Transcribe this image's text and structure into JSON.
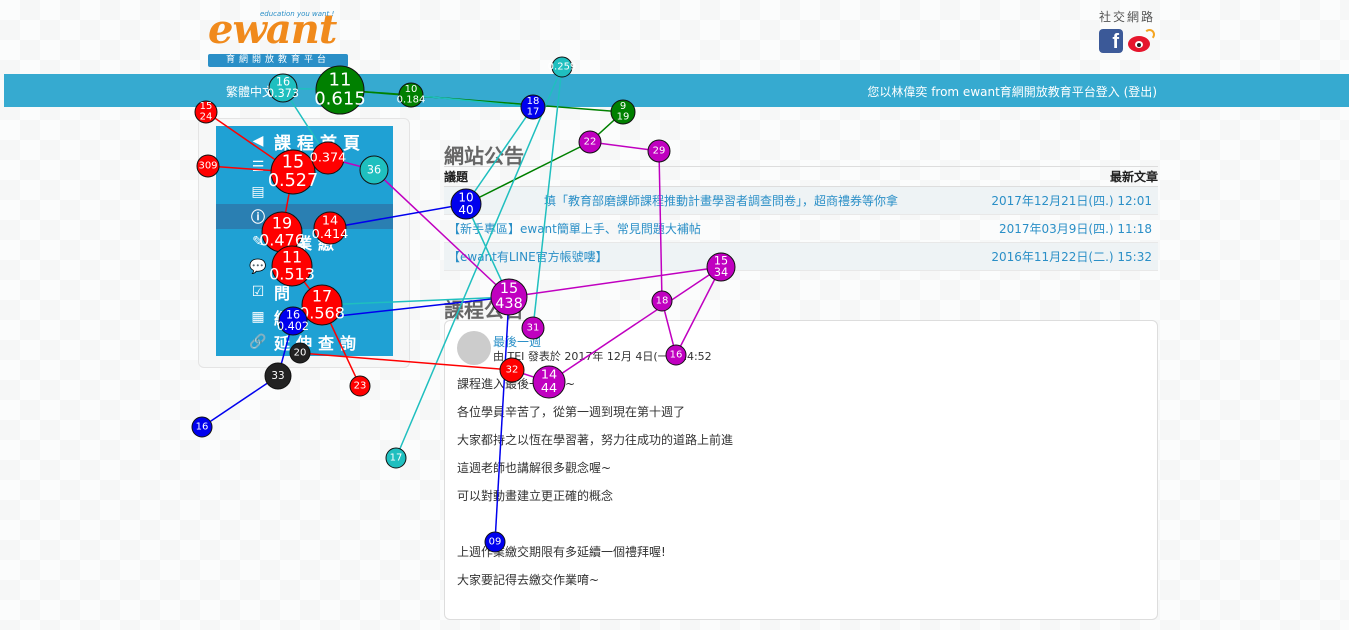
{
  "header": {
    "logo_text_main": "ewant",
    "logo_tagline": "education you want !",
    "logo_subtitle": "育網開放教育平台",
    "social_title": "社交網路",
    "social_icons": [
      "facebook-icon",
      "weibo-icon"
    ]
  },
  "navbar": {
    "language": "繁體中文",
    "login_text": "您以林偉奕 from ewant育網開放教育平台登入 (",
    "logout": "登出",
    "login_close": ")"
  },
  "sidebar": {
    "items": [
      {
        "icon": "back-icon",
        "label": "課程首頁"
      },
      {
        "icon": "list-icon",
        "label": ""
      },
      {
        "icon": "file-icon",
        "label": ""
      },
      {
        "icon": "info-icon",
        "label": ""
      },
      {
        "icon": "edit-icon",
        "label": "作業繳"
      },
      {
        "icon": "comments-icon",
        "label": "區"
      },
      {
        "icon": "check-icon",
        "label": "問"
      },
      {
        "icon": "table-icon",
        "label": "績"
      },
      {
        "icon": "link-icon",
        "label": "延伸查詢"
      }
    ]
  },
  "news": {
    "title": "網站公告",
    "col_subject": "議題",
    "col_latest": "最新文章",
    "rows": [
      {
        "subject": "填「教育部磨課師課程推動計畫學習者調查問卷」，超商禮券等你拿",
        "date": "2017年12月21日(四.) 12:01"
      },
      {
        "subject": "【新手專區】ewant簡單上手、常見問題大補帖",
        "date": "2017年03月9日(四.) 11:18"
      },
      {
        "subject": "【ewant有LINE官方帳號嘍】",
        "date": "2016年11月22日(二.) 15:32"
      }
    ]
  },
  "course_news": {
    "title": "課程公告",
    "subject": "最後一週",
    "author": "由 TEI 發表於 2017年 12月 4日(一.) 14:52",
    "body": [
      "課程進入最後一週了~",
      "各位學員辛苦了，從第一週到現在第十週了",
      "大家都持之以恆在學習著，努力往成功的道路上前進",
      "這週老師也講解很多觀念喔~",
      "可以對動畫建立更正確的概念",
      "",
      "上週作業繳交期限有多延續一個禮拜喔!",
      "大家要記得去繳交作業唷~"
    ]
  },
  "overlay": {
    "colors": {
      "red": "#ff0000",
      "blue": "#0000ee",
      "cyan": "#1fbfbf",
      "green": "#008000",
      "magenta": "#c000c0",
      "black": "#222222",
      "yellow": "#c8b400"
    },
    "nodes": [
      {
        "label": "11",
        "value": "0.615",
        "color": "green"
      },
      {
        "label": "16",
        "value": "0.373",
        "color": "cyan"
      },
      {
        "label": "10",
        "value": "0.184",
        "color": "green"
      },
      {
        "label": "",
        "value": "0.259",
        "color": "cyan"
      },
      {
        "label": "18",
        "value": "17",
        "color": "blue"
      },
      {
        "label": "9",
        "value": "19",
        "color": "green"
      },
      {
        "label": "15",
        "value": "24",
        "color": "red"
      },
      {
        "label": "",
        "value": "309",
        "color": "red"
      },
      {
        "label": "15",
        "value": "0.527",
        "color": "red"
      },
      {
        "label": "",
        "value": "0.374",
        "color": "red"
      },
      {
        "label": "19",
        "value": "0.476",
        "color": "red"
      },
      {
        "label": "14",
        "value": "0.414",
        "color": "red"
      },
      {
        "label": "11",
        "value": "0.513",
        "color": "red"
      },
      {
        "label": "17",
        "value": "0.568",
        "color": "red"
      },
      {
        "label": "16",
        "value": "0.402",
        "color": "blue"
      },
      {
        "label": "",
        "value": "33",
        "color": "black"
      },
      {
        "label": "",
        "value": "20",
        "color": "black"
      },
      {
        "label": "",
        "value": "23",
        "color": "red"
      },
      {
        "label": "",
        "value": "16",
        "color": "blue"
      },
      {
        "label": "",
        "value": "17",
        "color": "cyan"
      },
      {
        "label": "",
        "value": "36",
        "color": "cyan"
      },
      {
        "label": "",
        "value": "29",
        "color": "magenta"
      },
      {
        "label": "",
        "value": "22",
        "color": "magenta"
      },
      {
        "label": "10",
        "value": "40",
        "color": "blue"
      },
      {
        "label": "15",
        "value": "438",
        "color": "magenta"
      },
      {
        "label": "",
        "value": "31",
        "color": "magenta"
      },
      {
        "label": "",
        "value": "32",
        "color": "red"
      },
      {
        "label": "14",
        "value": "44",
        "color": "magenta"
      },
      {
        "label": "15",
        "value": "34",
        "color": "magenta"
      },
      {
        "label": "",
        "value": "18",
        "color": "magenta"
      },
      {
        "label": "",
        "value": "16",
        "color": "magenta"
      },
      {
        "label": "",
        "value": "09",
        "color": "blue"
      }
    ]
  }
}
